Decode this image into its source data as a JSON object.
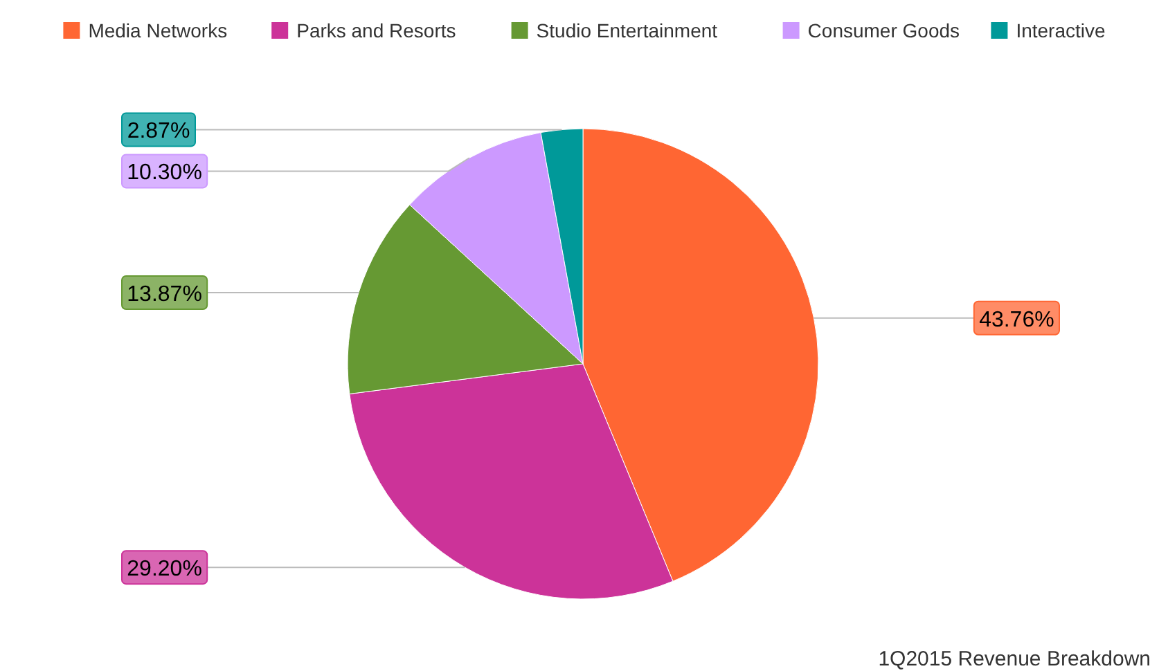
{
  "chart_data": {
    "type": "pie",
    "title": "1Q2015 Revenue Breakdown",
    "categories": [
      "Media Networks",
      "Parks and Resorts",
      "Studio Entertainment",
      "Consumer Goods",
      "Interactive"
    ],
    "values": [
      43.76,
      29.2,
      13.87,
      10.3,
      2.87
    ],
    "colors": [
      "#ff6633",
      "#cc3399",
      "#669933",
      "#cc99ff",
      "#009999"
    ],
    "value_labels": [
      "43.76%",
      "29.20%",
      "13.87%",
      "10.30%",
      "2.87%"
    ],
    "legend": "top"
  }
}
